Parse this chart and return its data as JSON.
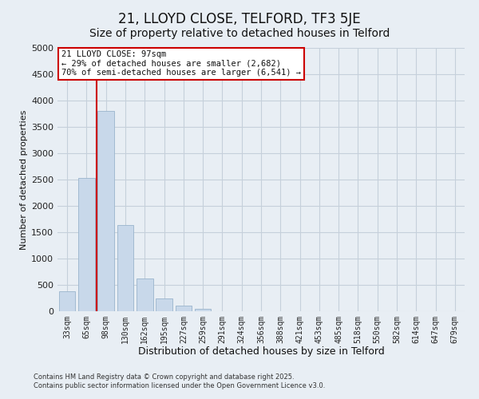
{
  "title": "21, LLOYD CLOSE, TELFORD, TF3 5JE",
  "subtitle": "Size of property relative to detached houses in Telford",
  "xlabel": "Distribution of detached houses by size in Telford",
  "ylabel": "Number of detached properties",
  "bar_labels": [
    "33sqm",
    "65sqm",
    "98sqm",
    "130sqm",
    "162sqm",
    "195sqm",
    "227sqm",
    "259sqm",
    "291sqm",
    "324sqm",
    "356sqm",
    "388sqm",
    "421sqm",
    "453sqm",
    "485sqm",
    "518sqm",
    "550sqm",
    "582sqm",
    "614sqm",
    "647sqm",
    "679sqm"
  ],
  "bar_values": [
    380,
    2530,
    3800,
    1640,
    625,
    240,
    100,
    50,
    0,
    0,
    0,
    0,
    0,
    0,
    0,
    0,
    0,
    0,
    0,
    0,
    0
  ],
  "bar_color": "#c8d8ea",
  "bar_edgecolor": "#9ab4cc",
  "ylim": [
    0,
    5000
  ],
  "yticks": [
    0,
    500,
    1000,
    1500,
    2000,
    2500,
    3000,
    3500,
    4000,
    4500,
    5000
  ],
  "vline_color": "#cc0000",
  "annotation_line1": "21 LLOYD CLOSE: 97sqm",
  "annotation_line2": "← 29% of detached houses are smaller (2,682)",
  "annotation_line3": "70% of semi-detached houses are larger (6,541) →",
  "footer_line1": "Contains HM Land Registry data © Crown copyright and database right 2025.",
  "footer_line2": "Contains public sector information licensed under the Open Government Licence v3.0.",
  "background_color": "#e8eef4",
  "plot_bg_color": "#e8eef4",
  "grid_color": "#c5d0db",
  "title_fontsize": 12,
  "subtitle_fontsize": 10
}
